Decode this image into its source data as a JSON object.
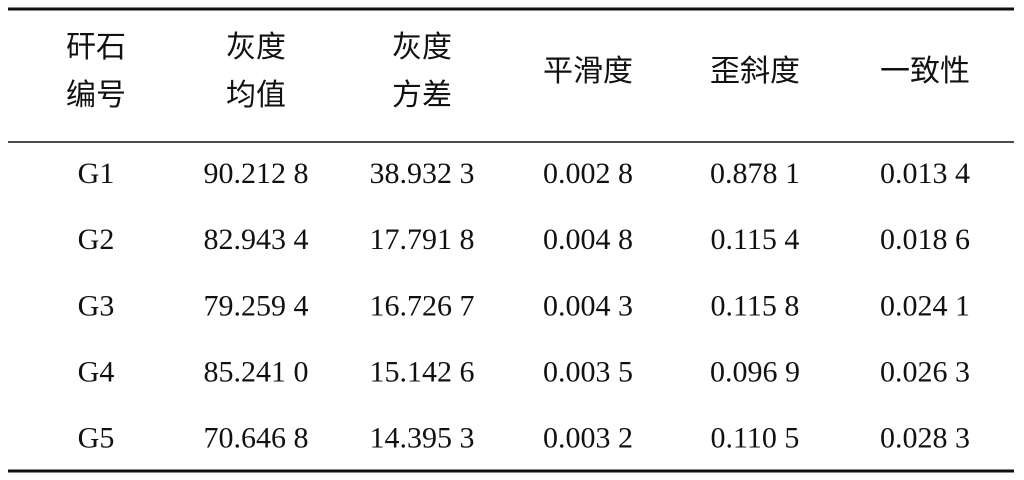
{
  "table": {
    "header": [
      [
        "矸石",
        "编号"
      ],
      [
        "灰度",
        "均值"
      ],
      [
        "灰度",
        "方差"
      ],
      [
        "平滑度"
      ],
      [
        "歪斜度"
      ],
      [
        "一致性"
      ]
    ],
    "rows": [
      [
        "G1",
        "90.212 8",
        "38.932 3",
        "0.002 8",
        "0.878 1",
        "0.013 4"
      ],
      [
        "G2",
        "82.943 4",
        "17.791 8",
        "0.004 8",
        "0.115 4",
        "0.018 6"
      ],
      [
        "G3",
        "79.259 4",
        "16.726 7",
        "0.004 3",
        "0.115 8",
        "0.024 1"
      ],
      [
        "G4",
        "85.241 0",
        "15.142 6",
        "0.003 5",
        "0.096 9",
        "0.026 3"
      ],
      [
        "G5",
        "70.646 8",
        "14.395 3",
        "0.003 2",
        "0.110 5",
        "0.028 3"
      ]
    ]
  }
}
